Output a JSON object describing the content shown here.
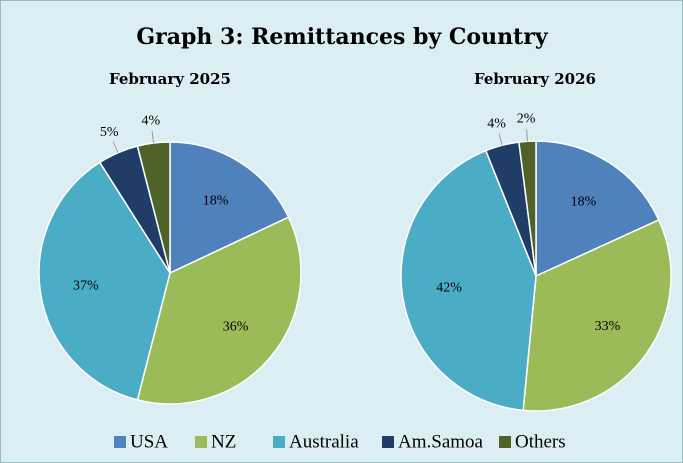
{
  "title": "Graph 3: Remittances by Country",
  "chart_data": [
    {
      "type": "pie",
      "title": "February 2025",
      "categories": [
        "USA",
        "NZ",
        "Australia",
        "Am.Samoa",
        "Others"
      ],
      "values": [
        18,
        36,
        37,
        5,
        4
      ],
      "value_labels": [
        "18%",
        "36%",
        "37%",
        "5%",
        "4%"
      ],
      "colors": [
        "#4f81bd",
        "#9bbb59",
        "#4bacc6",
        "#1f3d66",
        "#4f6228"
      ]
    },
    {
      "type": "pie",
      "title": "February 2026",
      "categories": [
        "USA",
        "NZ",
        "Australia",
        "Am.Samoa",
        "Others"
      ],
      "values": [
        18,
        33,
        42,
        4,
        2
      ],
      "value_labels": [
        "18%",
        "33%",
        "42%",
        "4%",
        "2%"
      ],
      "colors": [
        "#4f81bd",
        "#9bbb59",
        "#4bacc6",
        "#1f3d66",
        "#4f6228"
      ]
    }
  ]
}
